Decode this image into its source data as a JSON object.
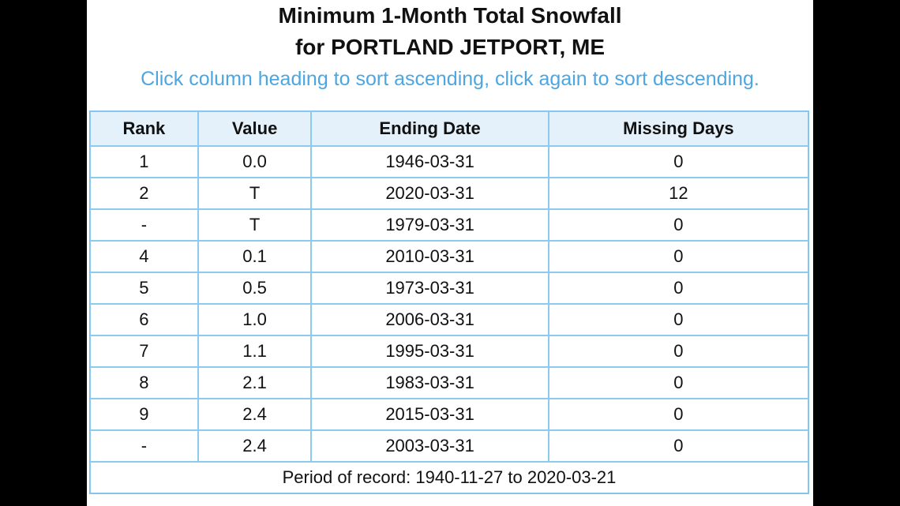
{
  "header": {
    "title_lines": [
      "Minimum 1-Month Total Snowfall",
      "for PORTLAND JETPORT, ME"
    ],
    "instruction": "Click column heading to sort ascending, click again to sort descending."
  },
  "table": {
    "columns": [
      "Rank",
      "Value",
      "Ending Date",
      "Missing Days"
    ],
    "rows": [
      [
        "1",
        "0.0",
        "1946-03-31",
        "0"
      ],
      [
        "2",
        "T",
        "2020-03-31",
        "12"
      ],
      [
        "-",
        "T",
        "1979-03-31",
        "0"
      ],
      [
        "4",
        "0.1",
        "2010-03-31",
        "0"
      ],
      [
        "5",
        "0.5",
        "1973-03-31",
        "0"
      ],
      [
        "6",
        "1.0",
        "2006-03-31",
        "0"
      ],
      [
        "7",
        "1.1",
        "1995-03-31",
        "0"
      ],
      [
        "8",
        "2.1",
        "1983-03-31",
        "0"
      ],
      [
        "9",
        "2.4",
        "2015-03-31",
        "0"
      ],
      [
        "-",
        "2.4",
        "2003-03-31",
        "0"
      ]
    ],
    "footer": "Period of record: 1940-11-27 to 2020-03-21"
  }
}
